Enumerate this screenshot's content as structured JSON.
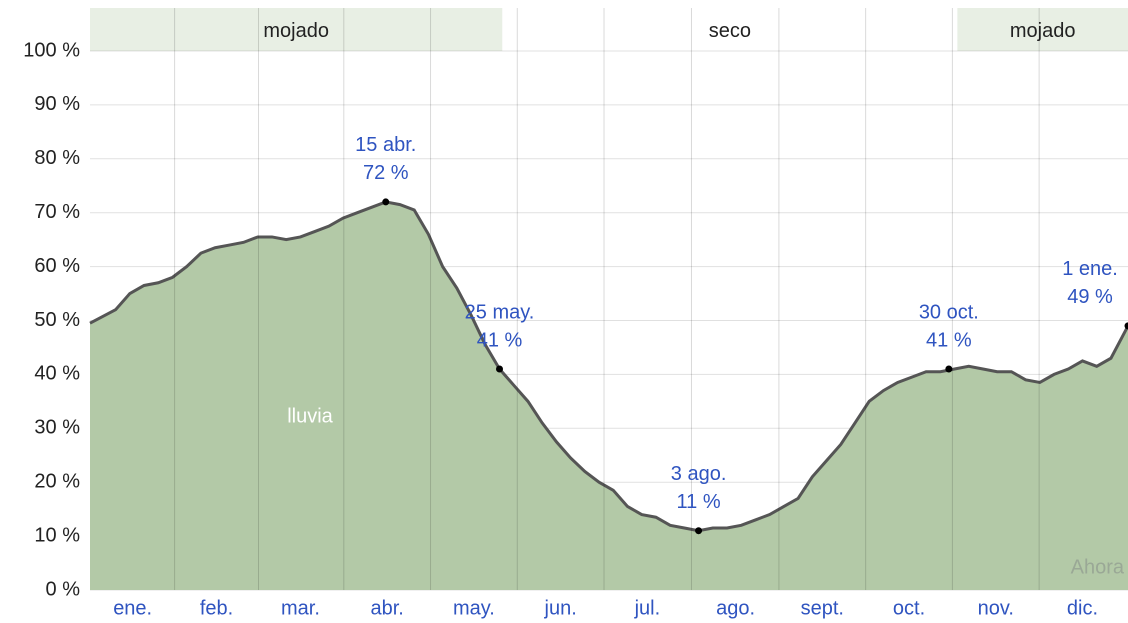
{
  "chart_data": {
    "type": "area",
    "series": [
      {
        "name": "lluvia",
        "color": "#b3c9a7",
        "line_color": "#555555",
        "x": [
          1,
          10,
          15,
          20,
          25,
          30,
          35,
          40,
          45,
          50,
          55,
          60,
          65,
          70,
          75,
          80,
          85,
          90,
          95,
          100,
          105,
          110,
          115,
          120,
          125,
          130,
          135,
          140,
          145,
          150,
          155,
          160,
          165,
          170,
          175,
          180,
          185,
          190,
          195,
          200,
          205,
          210,
          215,
          220,
          225,
          230,
          235,
          240,
          245,
          250,
          255,
          260,
          265,
          270,
          275,
          280,
          285,
          290,
          295,
          300,
          305,
          310,
          315,
          320,
          325,
          330,
          335,
          340,
          345,
          350,
          355,
          360,
          366
        ],
        "values": [
          49.5,
          52,
          55,
          56.5,
          57,
          58,
          60,
          62.5,
          63.5,
          64,
          64.5,
          65.5,
          65.5,
          65,
          65.5,
          66.5,
          67.5,
          69,
          70,
          71,
          72,
          71.5,
          70.5,
          66,
          60,
          56,
          51,
          45.5,
          41,
          38,
          35,
          31,
          27.5,
          24.5,
          22,
          20,
          18.5,
          15.5,
          14,
          13.5,
          12,
          11.5,
          11,
          11.5,
          11.5,
          12,
          13,
          14,
          15.5,
          17,
          21,
          24,
          27,
          31,
          35,
          37,
          38.5,
          39.5,
          40.5,
          40.5,
          41,
          41.5,
          41,
          40.5,
          40.5,
          39,
          38.5,
          40,
          41,
          42.5,
          41.5,
          43,
          49
        ]
      }
    ],
    "xlim": [
      1,
      366
    ],
    "xticks": [
      {
        "value": 16,
        "label": "ene."
      },
      {
        "value": 45.5,
        "label": "feb."
      },
      {
        "value": 75,
        "label": "mar."
      },
      {
        "value": 105.5,
        "label": "abr."
      },
      {
        "value": 136,
        "label": "may."
      },
      {
        "value": 166.5,
        "label": "jun."
      },
      {
        "value": 197,
        "label": "jul."
      },
      {
        "value": 228,
        "label": "ago."
      },
      {
        "value": 258.5,
        "label": "sept."
      },
      {
        "value": 289,
        "label": "oct."
      },
      {
        "value": 319.5,
        "label": "nov."
      },
      {
        "value": 350,
        "label": "dic."
      }
    ],
    "ylim": [
      0,
      100
    ],
    "yticks": [
      {
        "value": 0,
        "label": "0 %"
      },
      {
        "value": 10,
        "label": "10 %"
      },
      {
        "value": 20,
        "label": "20 %"
      },
      {
        "value": 30,
        "label": "30 %"
      },
      {
        "value": 40,
        "label": "40 %"
      },
      {
        "value": 50,
        "label": "50 %"
      },
      {
        "value": 60,
        "label": "60 %"
      },
      {
        "value": 70,
        "label": "70 %"
      },
      {
        "value": 80,
        "label": "80 %"
      },
      {
        "value": 90,
        "label": "90 %"
      },
      {
        "value": 100,
        "label": "100 %"
      }
    ],
    "grid": true,
    "bands": [
      {
        "label": "mojado",
        "start": 1,
        "end": 146,
        "color": "#e8efe4"
      },
      {
        "label": "seco",
        "start": 146,
        "end": 306,
        "color": "#ffffff"
      },
      {
        "label": "mojado",
        "start": 306,
        "end": 366,
        "color": "#e8efe4"
      }
    ],
    "annotations": [
      {
        "label": "15 abr.",
        "x": 105,
        "y": 72,
        "value_label": "72 %"
      },
      {
        "label": "25 may.",
        "x": 145,
        "y": 41,
        "value_label": "41 %"
      },
      {
        "label": "3 ago.",
        "x": 215,
        "y": 11,
        "value_label": "11 %"
      },
      {
        "label": "30 oct.",
        "x": 303,
        "y": 41,
        "value_label": "41 %"
      },
      {
        "label": "1 ene.",
        "x": 366,
        "y": 49,
        "value_label": "49 %"
      }
    ],
    "now_label": "Ahora"
  }
}
